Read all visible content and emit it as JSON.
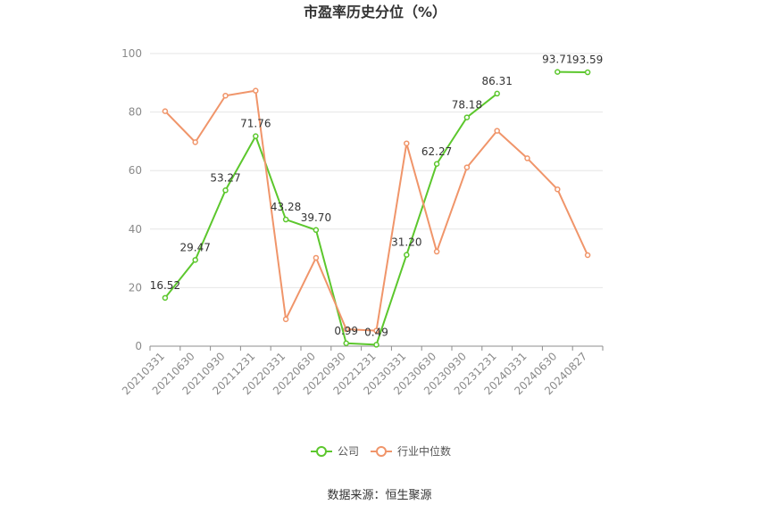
{
  "chart_data": {
    "type": "line",
    "title": "市盈率历史分位（%）",
    "source": "数据来源：恒生聚源",
    "categories": [
      "20210331",
      "20210630",
      "20210930",
      "20211231",
      "20220331",
      "20220630",
      "20220930",
      "20221231",
      "20230331",
      "20230630",
      "20230930",
      "20231231",
      "20240331",
      "20240630",
      "20240827"
    ],
    "ylim": [
      0,
      100
    ],
    "yticks": [
      0,
      20,
      40,
      60,
      80,
      100
    ],
    "grid": true,
    "legend_position": "bottom",
    "series": [
      {
        "name": "公司",
        "color": "#5cc72d",
        "show_labels": true,
        "values": [
          16.52,
          29.47,
          53.27,
          71.76,
          43.28,
          39.7,
          0.99,
          0.49,
          31.2,
          62.27,
          78.18,
          86.31,
          null,
          93.71,
          93.59
        ],
        "labels": [
          "16.52",
          "29.47",
          "53.27",
          "71.76",
          "43.28",
          "39.70",
          "0.99",
          "0.49",
          "31.20",
          "62.27",
          "78.18",
          "86.31",
          "",
          "93.71",
          "93.59"
        ]
      },
      {
        "name": "行业中位数",
        "color": "#f0956a",
        "show_labels": false,
        "values": [
          80.3,
          69.7,
          85.6,
          87.3,
          9.2,
          30.2,
          5.8,
          5.3,
          69.3,
          32.3,
          61.1,
          73.6,
          64.2,
          53.6,
          31.1
        ]
      }
    ]
  }
}
